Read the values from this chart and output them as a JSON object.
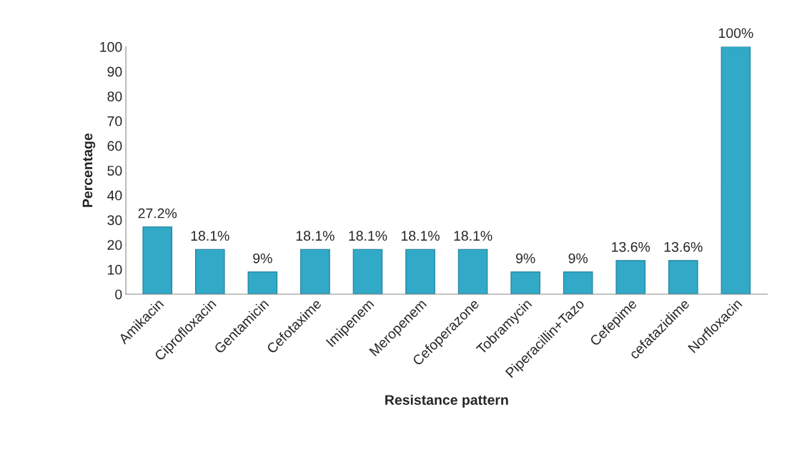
{
  "chart_data": {
    "type": "bar",
    "xlabel": "Resistance pattern",
    "ylabel": "Percentage",
    "categories": [
      "Amikacin",
      "Ciprofloxacin",
      "Gentamicin",
      "Cefotaxime",
      "Imipenem",
      "Meropenem",
      "Cefoperazone",
      "Tobramycin",
      "Piperacillin+Tazo",
      "Cefepime",
      "cefatazidime",
      "Norfloxacin"
    ],
    "values": [
      27.2,
      18.1,
      9,
      18.1,
      18.1,
      18.1,
      18.1,
      9,
      9,
      13.6,
      13.6,
      100
    ],
    "value_labels": [
      "27.2%",
      "18.1%",
      "9%",
      "18.1%",
      "18.1%",
      "18.1%",
      "18.1%",
      "9%",
      "9%",
      "13.6%",
      "13.6%",
      "100%"
    ],
    "color": "#31a9c7",
    "ylim": [
      0,
      100
    ],
    "yticks": [
      0,
      10,
      20,
      30,
      40,
      50,
      60,
      70,
      80,
      90,
      100
    ],
    "grid": false,
    "legend": false
  }
}
